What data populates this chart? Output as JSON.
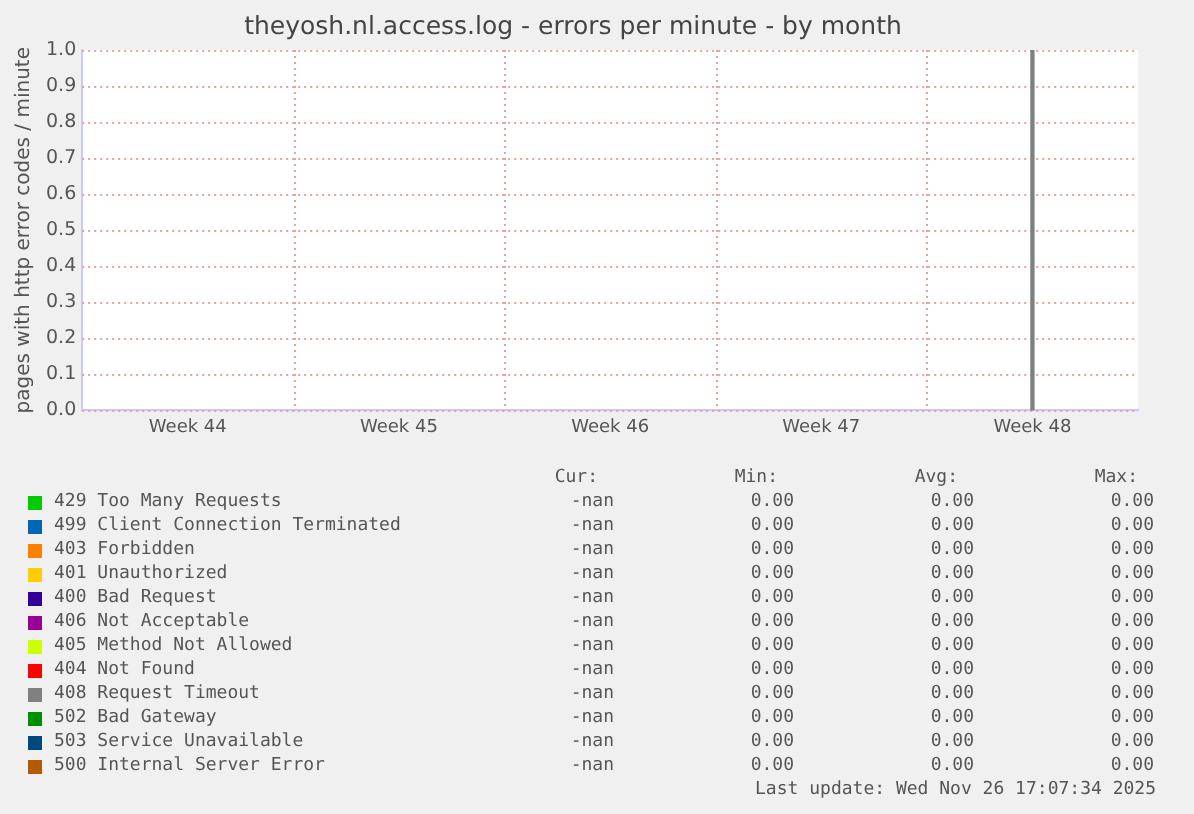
{
  "chart_data": {
    "type": "bar",
    "title": "theyosh.nl.access.log - errors per minute - by month",
    "ylabel": "pages with http error codes / minute",
    "categories": [
      "Week 44",
      "Week 45",
      "Week 46",
      "Week 47",
      "Week 48"
    ],
    "ylim": [
      0,
      1
    ],
    "yticks": [
      {
        "value": 0,
        "label": "0.0"
      },
      {
        "value": 0.1,
        "label": "0.1"
      },
      {
        "value": 0.2,
        "label": "0.2"
      },
      {
        "value": 0.3,
        "label": "0.3"
      },
      {
        "value": 0.4,
        "label": "0.4"
      },
      {
        "value": 0.5,
        "label": "0.5"
      },
      {
        "value": 0.6,
        "label": "0.6"
      },
      {
        "value": 0.7,
        "label": "0.7"
      },
      {
        "value": 0.8,
        "label": "0.8"
      },
      {
        "value": 0.9,
        "label": "0.9"
      },
      {
        "value": 1,
        "label": "1.0"
      }
    ],
    "grid": true,
    "legend": "bottom",
    "series": [
      {
        "name": "429 Too Many Requests",
        "color": "#00cc00",
        "values": [
          null,
          null,
          null,
          null,
          null
        ]
      },
      {
        "name": "499 Client Connection Terminated",
        "color": "#0066b3",
        "values": [
          null,
          null,
          null,
          null,
          null
        ]
      },
      {
        "name": "403 Forbidden",
        "color": "#ff8000",
        "values": [
          null,
          null,
          null,
          null,
          null
        ]
      },
      {
        "name": "401 Unauthorized",
        "color": "#ffcc00",
        "values": [
          null,
          null,
          null,
          null,
          null
        ]
      },
      {
        "name": "400 Bad Request",
        "color": "#330099",
        "values": [
          null,
          null,
          null,
          null,
          null
        ]
      },
      {
        "name": "406 Not Acceptable",
        "color": "#990099",
        "values": [
          null,
          null,
          null,
          null,
          null
        ]
      },
      {
        "name": "405 Method Not Allowed",
        "color": "#ccff00",
        "values": [
          null,
          null,
          null,
          null,
          null
        ]
      },
      {
        "name": "404 Not Found",
        "color": "#ff0000",
        "values": [
          null,
          null,
          null,
          null,
          null
        ]
      },
      {
        "name": "408 Request Timeout",
        "color": "#808080",
        "values": [
          null,
          null,
          null,
          null,
          1
        ]
      },
      {
        "name": "502 Bad Gateway",
        "color": "#008f00",
        "values": [
          null,
          null,
          null,
          null,
          null
        ]
      },
      {
        "name": "503 Service Unavailable",
        "color": "#00487d",
        "values": [
          null,
          null,
          null,
          null,
          null
        ]
      },
      {
        "name": "500 Internal Server Error",
        "color": "#b35a00",
        "values": [
          null,
          null,
          null,
          null,
          null
        ]
      }
    ],
    "annotations": [
      "Cur:",
      "Min:",
      "Avg:",
      "Max:",
      "-nan",
      "0.00",
      "0.00",
      "0.00",
      "-nan",
      "0.00",
      "0.00",
      "0.00",
      "-nan",
      "0.00",
      "0.00",
      "0.00",
      "-nan",
      "0.00",
      "0.00",
      "0.00",
      "-nan",
      "0.00",
      "0.00",
      "0.00",
      "-nan",
      "0.00",
      "0.00",
      "0.00",
      "-nan",
      "0.00",
      "0.00",
      "0.00",
      "-nan",
      "0.00",
      "0.00",
      "0.00",
      "-nan",
      "0.00",
      "0.00",
      "0.00",
      "-nan",
      "0.00",
      "0.00",
      "0.00",
      "-nan",
      "0.00",
      "0.00",
      "0.00",
      "-nan",
      "0.00",
      "0.00",
      "0.00",
      "Last update: Wed Nov 26 17:07:34 2025"
    ]
  }
}
